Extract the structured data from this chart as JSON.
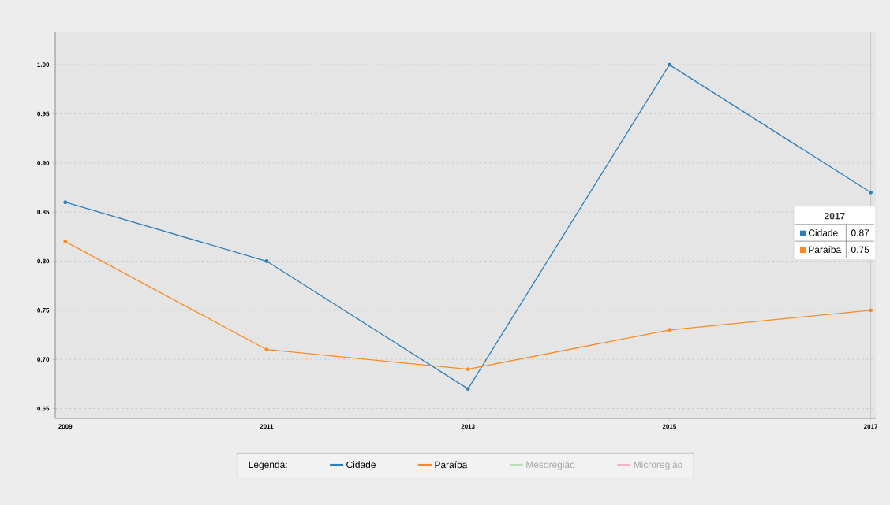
{
  "chart_data": {
    "type": "line",
    "x": [
      2009,
      2011,
      2013,
      2015,
      2017
    ],
    "series": [
      {
        "name": "Cidade",
        "color": "#2e7ebc",
        "values": [
          0.86,
          0.8,
          0.67,
          1.0,
          0.87
        ]
      },
      {
        "name": "Paraíba",
        "color": "#fb8a24",
        "values": [
          0.82,
          0.71,
          0.69,
          0.73,
          0.75
        ]
      },
      {
        "name": "Mesoregião",
        "color": "#b9dfb9",
        "values": [
          null,
          null,
          null,
          null,
          null
        ]
      },
      {
        "name": "Microregião",
        "color": "#f0b8bd",
        "values": [
          null,
          null,
          null,
          null,
          null
        ]
      }
    ],
    "legend_title": "Legenda:",
    "legend": "bottom",
    "marker": "circle",
    "line_style": "solid",
    "grid": "y",
    "xlim": [
      2008.9,
      2017.05
    ],
    "xticks": [
      2009,
      2011,
      2013,
      2015,
      2017
    ],
    "ylim": [
      0.64,
      1.033
    ],
    "yticks": [
      {
        "value": 0.65,
        "label": "0.65"
      },
      {
        "value": 0.7,
        "label": "0.70"
      },
      {
        "value": 0.75,
        "label": "0.75"
      },
      {
        "value": 0.8,
        "label": "0.80"
      },
      {
        "value": 0.85,
        "label": "0.85"
      },
      {
        "value": 0.9,
        "label": "0.90"
      },
      {
        "value": 0.95,
        "label": "0.95"
      },
      {
        "value": 1.0,
        "label": "1.00"
      }
    ],
    "ref_lines": [
      {
        "axis": "x",
        "value": 2017,
        "color": "#999999"
      }
    ],
    "annotations": [
      "2017",
      "0.87",
      "0.75"
    ]
  }
}
